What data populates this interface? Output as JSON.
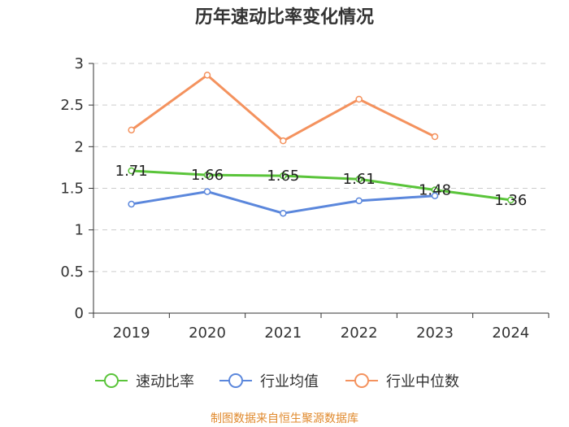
{
  "chart_data": {
    "type": "line",
    "title": "历年速动比率变化情况",
    "categories": [
      "2019",
      "2020",
      "2021",
      "2022",
      "2023",
      "2024"
    ],
    "ylim": [
      0,
      3
    ],
    "yticks": [
      "0",
      "0.5",
      "1",
      "1.5",
      "2",
      "2.5",
      "3"
    ],
    "grid": true,
    "legend_position": "bottom",
    "series": [
      {
        "name": "速动比率",
        "color": "#5ac43a",
        "values": [
          1.71,
          1.66,
          1.65,
          1.61,
          1.48,
          1.36
        ],
        "labels": [
          "1.71",
          "1.66",
          "1.65",
          "1.61",
          "1.48",
          "1.36"
        ]
      },
      {
        "name": "行业均值",
        "color": "#5b87dc",
        "values": [
          1.31,
          1.46,
          1.2,
          1.35,
          1.41,
          null
        ]
      },
      {
        "name": "行业中位数",
        "color": "#f4925e",
        "values": [
          2.2,
          2.86,
          2.07,
          2.57,
          2.12,
          null
        ]
      }
    ],
    "source": "制图数据来自恒生聚源数据库"
  }
}
